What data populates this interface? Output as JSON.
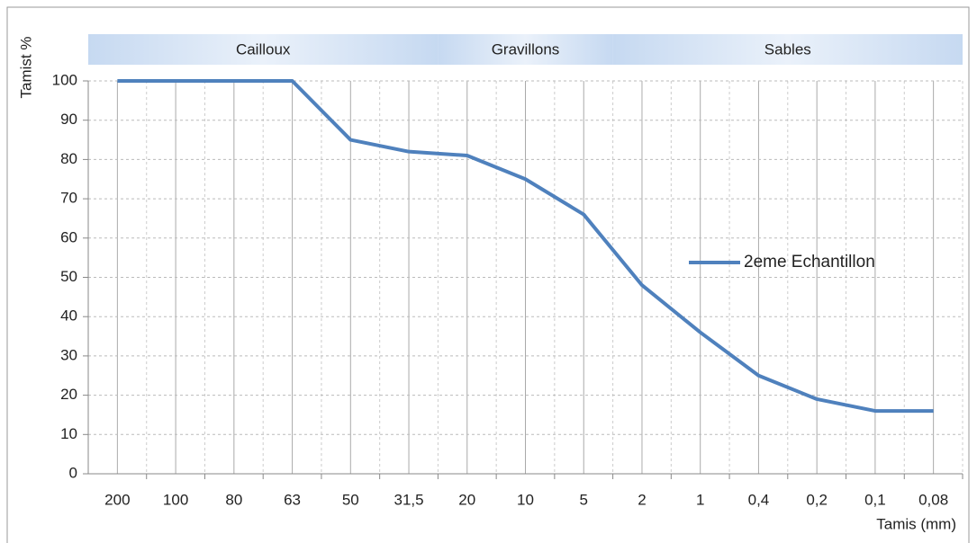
{
  "chart_data": {
    "type": "line",
    "ylabel": "Tamist %",
    "xlabel": "Tamis (mm)",
    "zones": [
      "Cailloux",
      "Gravillons",
      "Sables"
    ],
    "categories": [
      "200",
      "100",
      "80",
      "63",
      "50",
      "31,5",
      "20",
      "10",
      "5",
      "2",
      "1",
      "0,4",
      "0,2",
      "0,1",
      "0,08"
    ],
    "series": [
      {
        "name": "2eme Echantillon",
        "color": "#4f81bd",
        "values": [
          100,
          100,
          100,
          100,
          85,
          82,
          81,
          75,
          66,
          48,
          36,
          25,
          19,
          16,
          16
        ]
      }
    ],
    "ylim": [
      0,
      100
    ],
    "yticks": [
      0,
      10,
      20,
      30,
      40,
      50,
      60,
      70,
      80,
      90,
      100
    ],
    "grid": true,
    "legend": "right"
  }
}
